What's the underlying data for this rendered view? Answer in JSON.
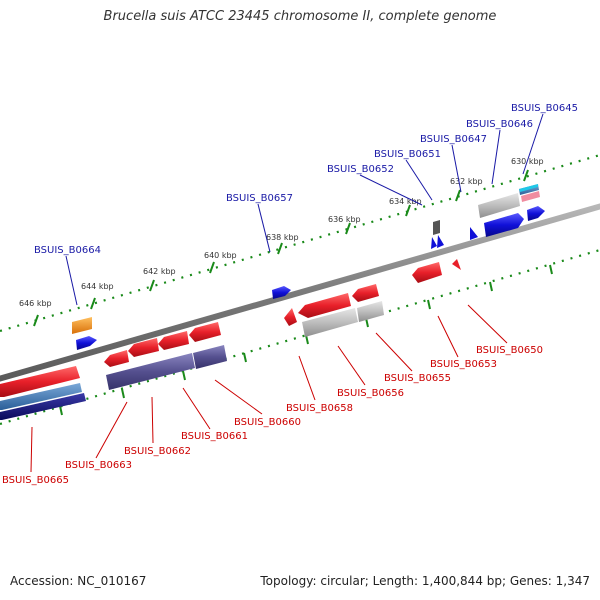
{
  "title": "Brucella suis ATCC 23445 chromosome II, complete genome",
  "footer": {
    "accession": "Accession: NC_010167",
    "topology": "Topology: circular; Length: 1,400,844 bp; Genes: 1,347"
  },
  "colors": {
    "backbone": "#8a8a8a",
    "tick": "#1a8a1a",
    "forward_label": "#1a1aa6",
    "reverse_label": "#cc0000",
    "cds_red": "#e8202a",
    "cds_grey": "#b0b0b0",
    "cds_blue": "#1010d8",
    "cds_navy": "#55508f",
    "cds_orange": "#f08a10",
    "cds_cyan": "#20c8e8",
    "cds_pink": "#f08ca0"
  },
  "kbp_ticks": [
    {
      "label": "630 kbp"
    },
    {
      "label": "632 kbp"
    },
    {
      "label": "634 kbp"
    },
    {
      "label": "636 kbp"
    },
    {
      "label": "638 kbp"
    },
    {
      "label": "640 kbp"
    },
    {
      "label": "642 kbp"
    },
    {
      "label": "644 kbp"
    },
    {
      "label": "646 kbp"
    }
  ],
  "forward_labels": [
    {
      "text": "BSUIS_B0645"
    },
    {
      "text": "BSUIS_B0646"
    },
    {
      "text": "BSUIS_B0647"
    },
    {
      "text": "BSUIS_B0651"
    },
    {
      "text": "BSUIS_B0652"
    },
    {
      "text": "BSUIS_B0657"
    },
    {
      "text": "BSUIS_B0664"
    }
  ],
  "reverse_labels": [
    {
      "text": "BSUIS_B0650"
    },
    {
      "text": "BSUIS_B0653"
    },
    {
      "text": "BSUIS_B0655"
    },
    {
      "text": "BSUIS_B0656"
    },
    {
      "text": "BSUIS_B0658"
    },
    {
      "text": "BSUIS_B0660"
    },
    {
      "text": "BSUIS_B0661"
    },
    {
      "text": "BSUIS_B0662"
    },
    {
      "text": "BSUIS_B0663"
    },
    {
      "text": "BSUIS_B0665"
    }
  ]
}
